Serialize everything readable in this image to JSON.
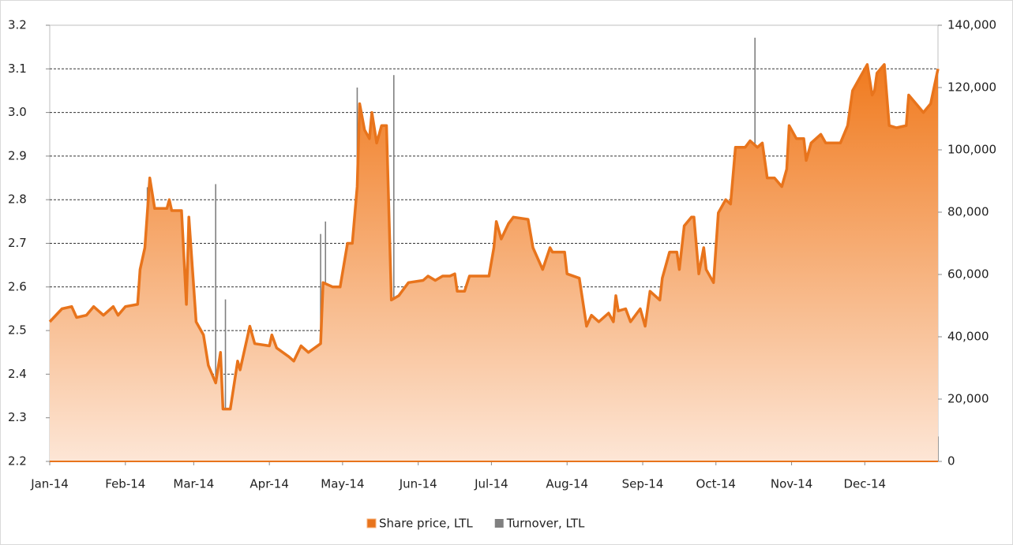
{
  "chart_data": {
    "type": "area",
    "xlim": [
      0,
      364
    ],
    "xticks": [
      {
        "value": 0,
        "label": "Jan-14"
      },
      {
        "value": 31,
        "label": "Feb-14"
      },
      {
        "value": 59,
        "label": "Mar-14"
      },
      {
        "value": 90,
        "label": "Apr-14"
      },
      {
        "value": 120,
        "label": "May-14"
      },
      {
        "value": 151,
        "label": "Jun-14"
      },
      {
        "value": 181,
        "label": "Jul-14"
      },
      {
        "value": 212,
        "label": "Aug-14"
      },
      {
        "value": 243,
        "label": "Sep-14"
      },
      {
        "value": 273,
        "label": "Oct-14"
      },
      {
        "value": 304,
        "label": "Nov-14"
      },
      {
        "value": 334,
        "label": "Dec-14"
      }
    ],
    "ylim": [
      2.2,
      3.2
    ],
    "yticks": [
      2.2,
      2.3,
      2.4,
      2.5,
      2.6,
      2.7,
      2.8,
      2.9,
      {
        "value": 3,
        "label": "3.0"
      },
      3.1,
      3.2
    ],
    "y2lim": [
      0,
      140000
    ],
    "y2ticks": [
      0,
      {
        "value": 20000,
        "label": "20,000"
      },
      {
        "value": 40000,
        "label": "40,000"
      },
      {
        "value": 60000,
        "label": "60,000"
      },
      {
        "value": 80000,
        "label": "80,000"
      },
      {
        "value": 100000,
        "label": "100,000"
      },
      {
        "value": 120000,
        "label": "120,000"
      },
      {
        "value": 140000,
        "label": "140,000"
      }
    ],
    "grid": true,
    "legend": "bottom",
    "series": [
      {
        "name": "Share price, LTL",
        "color": "#e8741c",
        "type": "area",
        "x": [
          0,
          5,
          9,
          11,
          15,
          18,
          22,
          26,
          28,
          31,
          36,
          37,
          39,
          41,
          43,
          48,
          49,
          50,
          54,
          56,
          57,
          60,
          63,
          65,
          68,
          70,
          71,
          74,
          77,
          78,
          82,
          84,
          90,
          91,
          93,
          98,
          100,
          103,
          106,
          111,
          112,
          116,
          119,
          122,
          124,
          126,
          127,
          129,
          131,
          132,
          134,
          136,
          138,
          140,
          143,
          147,
          153,
          155,
          158,
          161,
          164,
          166,
          167,
          170,
          172,
          180,
          182,
          183,
          185,
          188,
          190,
          196,
          198,
          202,
          205,
          206,
          211,
          212,
          217,
          220,
          222,
          225,
          229,
          231,
          232,
          233,
          236,
          238,
          242,
          244,
          246,
          250,
          251,
          254,
          257,
          258,
          260,
          263,
          264,
          266,
          268,
          269,
          272,
          274,
          277,
          279,
          281,
          285,
          287,
          290,
          292,
          294,
          297,
          300,
          302,
          303,
          306,
          309,
          310,
          312,
          316,
          318,
          324,
          327,
          329,
          332,
          335,
          337,
          338,
          339,
          342,
          344,
          347,
          351,
          352,
          355,
          358,
          361,
          364
        ],
        "values": [
          2.52,
          2.55,
          2.555,
          2.53,
          2.535,
          2.555,
          2.535,
          2.555,
          2.535,
          2.555,
          2.56,
          2.64,
          2.69,
          2.85,
          2.78,
          2.78,
          2.8,
          2.775,
          2.775,
          2.56,
          2.76,
          2.52,
          2.49,
          2.42,
          2.38,
          2.45,
          2.32,
          2.32,
          2.43,
          2.41,
          2.51,
          2.47,
          2.465,
          2.49,
          2.46,
          2.44,
          2.43,
          2.465,
          2.45,
          2.47,
          2.61,
          2.6,
          2.6,
          2.7,
          2.7,
          2.83,
          3.02,
          2.96,
          2.94,
          3,
          2.93,
          2.97,
          2.97,
          2.57,
          2.58,
          2.61,
          2.615,
          2.625,
          2.615,
          2.625,
          2.625,
          2.63,
          2.59,
          2.59,
          2.625,
          2.625,
          2.69,
          2.75,
          2.71,
          2.745,
          2.76,
          2.755,
          2.69,
          2.64,
          2.69,
          2.68,
          2.68,
          2.63,
          2.62,
          2.51,
          2.535,
          2.52,
          2.54,
          2.52,
          2.58,
          2.545,
          2.55,
          2.52,
          2.55,
          2.51,
          2.59,
          2.57,
          2.62,
          2.68,
          2.68,
          2.64,
          2.74,
          2.76,
          2.76,
          2.63,
          2.69,
          2.64,
          2.61,
          2.77,
          2.8,
          2.79,
          2.92,
          2.92,
          2.935,
          2.92,
          2.93,
          2.85,
          2.85,
          2.83,
          2.87,
          2.97,
          2.94,
          2.94,
          2.89,
          2.93,
          2.95,
          2.93,
          2.93,
          2.97,
          3.05,
          3.08,
          3.11,
          3.04,
          3.05,
          3.09,
          3.11,
          2.97,
          2.965,
          2.97,
          3.04,
          3.02,
          3,
          3.02,
          3.1
        ]
      },
      {
        "name": "Turnover, LTL",
        "color": "#808080",
        "type": "bar",
        "axis": "y2",
        "x": [
          3,
          11,
          14,
          18,
          23,
          26,
          32,
          36,
          39,
          40,
          42,
          43,
          47,
          49,
          51,
          55,
          56,
          57,
          61,
          62,
          68,
          72,
          80,
          86,
          91,
          98,
          110,
          111,
          113,
          121,
          126,
          127,
          130,
          132,
          134,
          139,
          140,
          141,
          144,
          152,
          159,
          162,
          169,
          181,
          184,
          201,
          217,
          224,
          234,
          245,
          253,
          262,
          274,
          275,
          281,
          282,
          283,
          288,
          289,
          290,
          301,
          304,
          311,
          319,
          329,
          331,
          337,
          343,
          350,
          364
        ],
        "values": [
          16000,
          16000,
          20000,
          22000,
          16000,
          22000,
          20000,
          43000,
          32000,
          88000,
          50000,
          35000,
          28000,
          16000,
          24000,
          24000,
          40000,
          23000,
          23000,
          16000,
          89000,
          52000,
          10000,
          28000,
          10000,
          8000,
          13000,
          73000,
          77000,
          33000,
          120000,
          82000,
          35000,
          35000,
          30000,
          45000,
          49000,
          124000,
          42000,
          27000,
          22000,
          20000,
          16000,
          30000,
          10000,
          12000,
          16000,
          25000,
          14000,
          14000,
          14000,
          12000,
          50000,
          16000,
          37000,
          24000,
          82000,
          24000,
          136000,
          27000,
          28000,
          26000,
          25000,
          16000,
          35000,
          47000,
          14000,
          28000,
          11000,
          8000
        ]
      }
    ]
  }
}
